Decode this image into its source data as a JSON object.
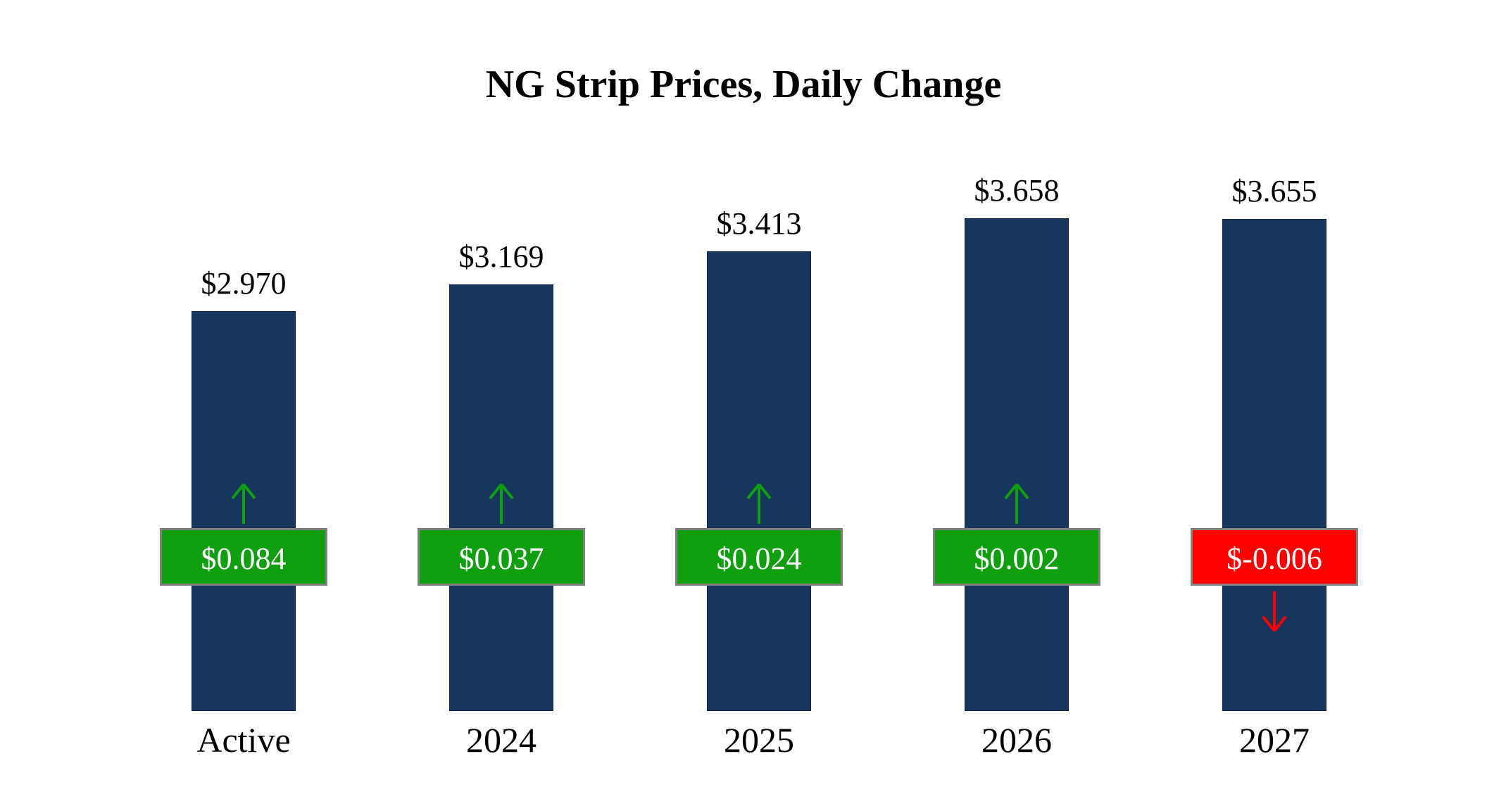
{
  "chart_data": {
    "type": "bar",
    "title": "NG Strip Prices, Daily Change",
    "categories": [
      "Active",
      "2024",
      "2025",
      "2026",
      "2027"
    ],
    "series": [
      {
        "name": "NG Strip Price",
        "values": [
          2.97,
          3.169,
          3.413,
          3.658,
          3.655
        ]
      }
    ],
    "price_labels": [
      "$2.970",
      "$3.169",
      "$3.413",
      "$3.658",
      "$3.655"
    ],
    "daily_changes": [
      0.084,
      0.037,
      0.024,
      0.002,
      -0.006
    ],
    "change_labels": [
      "$0.084",
      "$0.037",
      "$0.024",
      "$0.002",
      "$-0.006"
    ],
    "change_directions": [
      "up",
      "up",
      "up",
      "up",
      "down"
    ],
    "ylim": [
      0,
      4.3
    ],
    "grid": false,
    "legend": false,
    "colors": {
      "bar": "#17365D",
      "positive": "#0F9F0F",
      "negative": "#FF0000",
      "badge_border": "#808080",
      "text": "#000000",
      "background": "#FFFFFF"
    }
  }
}
